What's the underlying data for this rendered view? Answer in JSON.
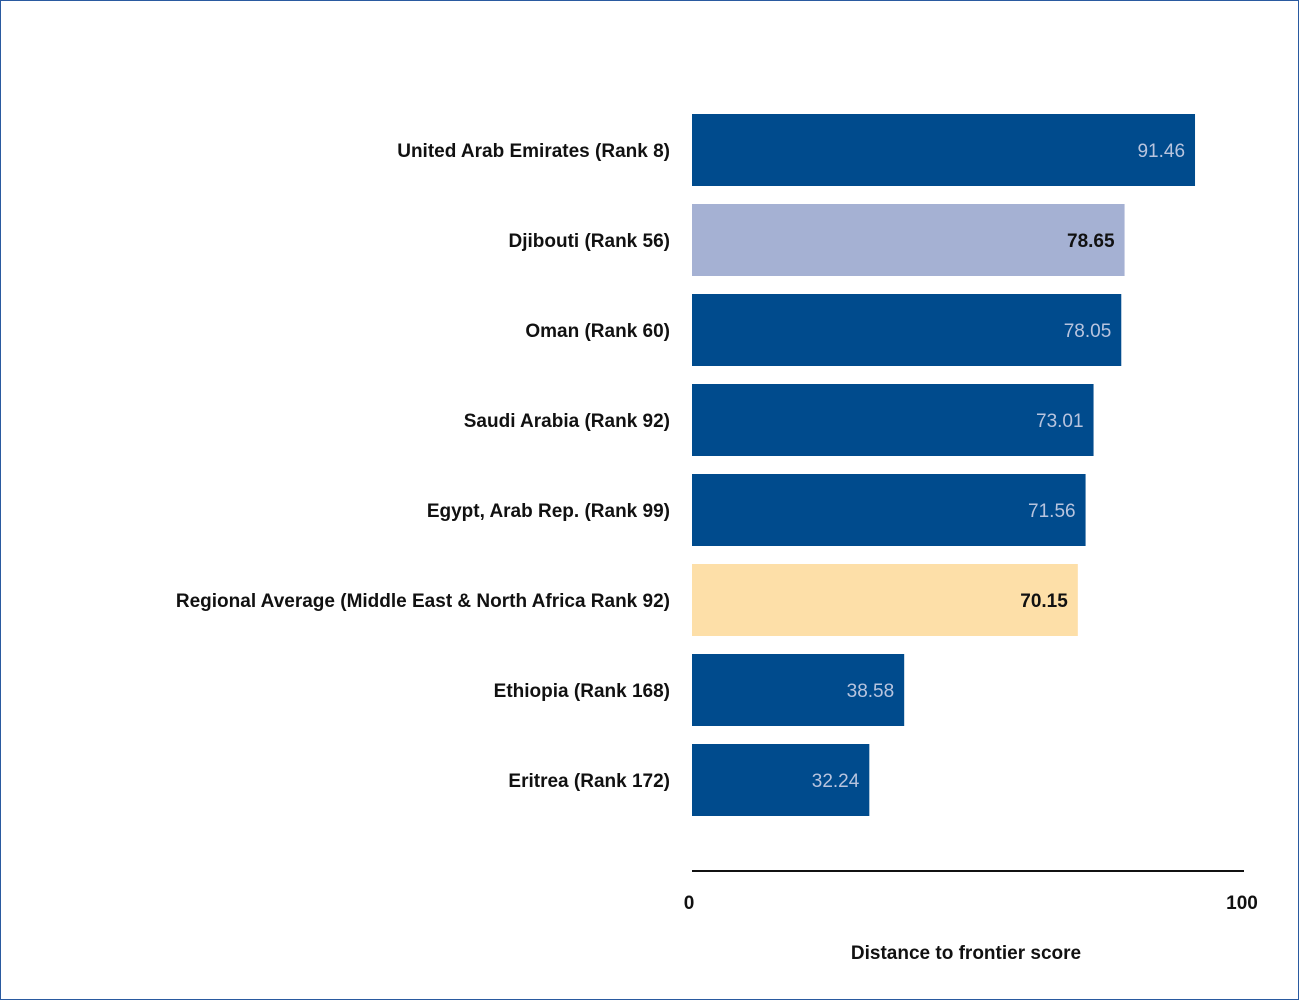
{
  "chart_data": {
    "type": "bar",
    "orientation": "horizontal",
    "categories": [
      "United Arab Emirates (Rank 8)",
      "Djibouti (Rank 56)",
      "Oman (Rank 60)",
      "Saudi Arabia (Rank 92)",
      "Egypt, Arab Rep. (Rank 99)",
      "Regional Average (Middle East & North Africa Rank 92)",
      "Ethiopia (Rank 168)",
      "Eritrea (Rank 172)"
    ],
    "values": [
      91.46,
      78.65,
      78.05,
      73.01,
      71.56,
      70.15,
      38.58,
      32.24
    ],
    "value_labels": [
      "91.46",
      "78.65",
      "78.05",
      "73.01",
      "71.56",
      "70.15",
      "38.58",
      "32.24"
    ],
    "bar_colors": [
      "#004b8d",
      "#a5b1d3",
      "#004b8d",
      "#004b8d",
      "#004b8d",
      "#fddfa8",
      "#004b8d",
      "#004b8d"
    ],
    "value_label_colors": [
      "#b8c4de",
      "#111111",
      "#b8c4de",
      "#b8c4de",
      "#b8c4de",
      "#111111",
      "#b8c4de",
      "#b8c4de"
    ],
    "xlim": [
      0,
      100
    ],
    "xticks": [
      "0",
      "100"
    ],
    "xlabel": "Distance to frontier score",
    "grid": false,
    "legend": false
  }
}
